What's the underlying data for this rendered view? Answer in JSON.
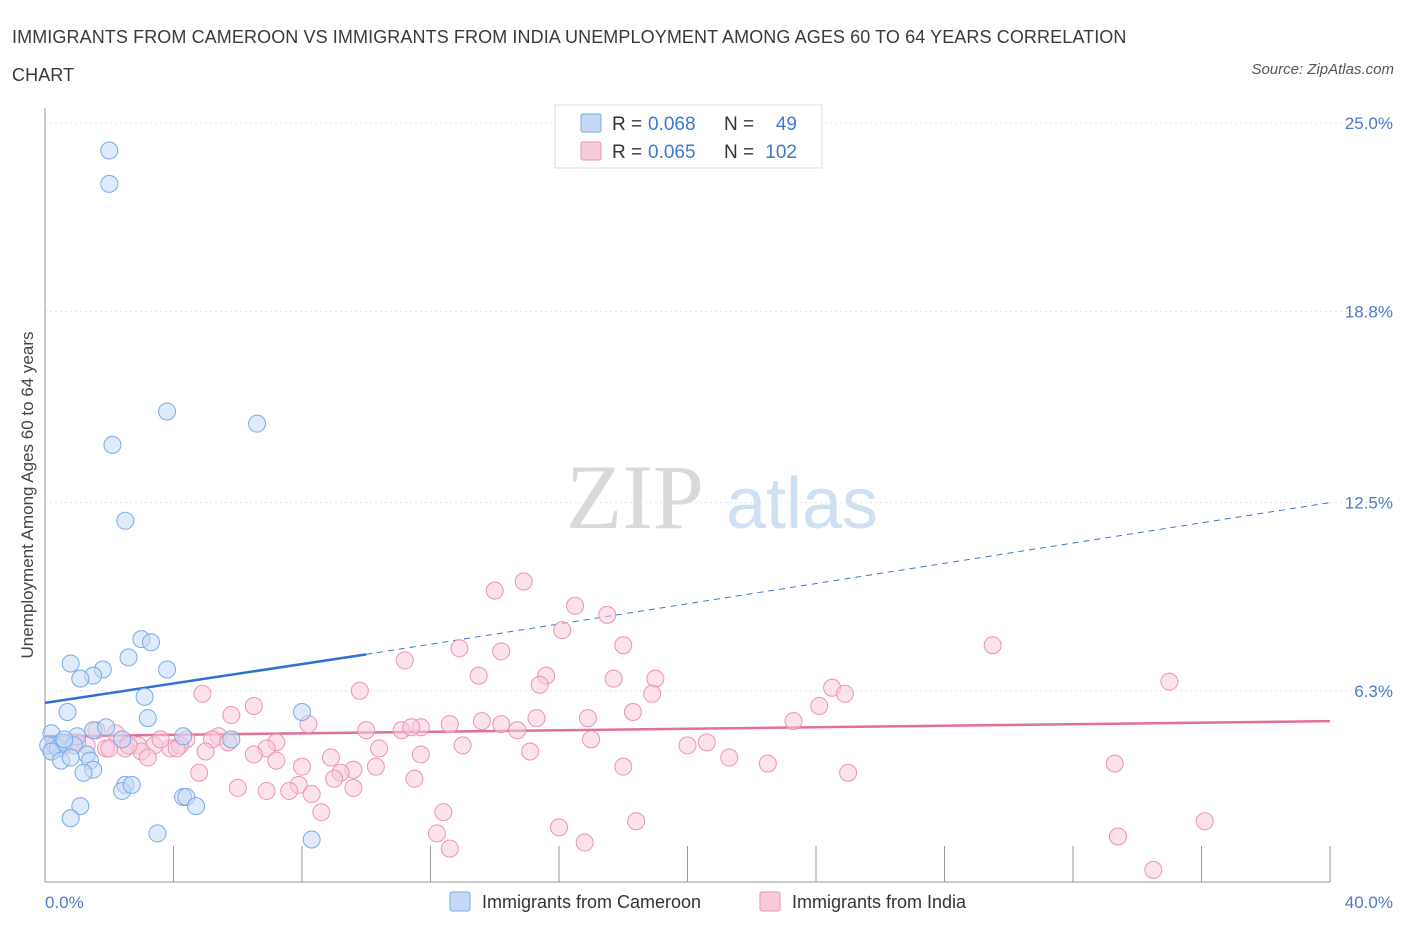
{
  "title": "IMMIGRANTS FROM CAMEROON VS IMMIGRANTS FROM INDIA UNEMPLOYMENT AMONG AGES 60 TO 64 YEARS CORRELATION CHART",
  "source": "Source: ZipAtlas.com",
  "watermark": {
    "zip": "ZIP",
    "atlas": "atlas"
  },
  "chart_data": {
    "type": "scatter",
    "title": "IMMIGRANTS FROM CAMEROON VS IMMIGRANTS FROM INDIA UNEMPLOYMENT AMONG AGES 60 TO 64 YEARS CORRELATION CHART",
    "xlabel": "",
    "ylabel": "Unemployment Among Ages 60 to 64 years",
    "xlim": [
      0,
      40
    ],
    "ylim": [
      0,
      25.5
    ],
    "x_tick_labels": {
      "min": "0.0%",
      "max": "40.0%"
    },
    "y_ticks": [
      {
        "value": 6.3,
        "label": "6.3%"
      },
      {
        "value": 12.5,
        "label": "12.5%"
      },
      {
        "value": 18.8,
        "label": "18.8%"
      },
      {
        "value": 25.0,
        "label": "25.0%"
      }
    ],
    "grid": true,
    "legend_position": "top-center",
    "series": [
      {
        "name": "Immigrants from Cameroon",
        "color": "#7aaae8",
        "fill": "#c5d9f5",
        "R": "0.068",
        "N": "49",
        "trend": {
          "x0": 0,
          "y0": 5.9,
          "x1": 10,
          "y1": 7.5,
          "dashed_to_x": 40,
          "dashed_to_y": 12.5
        },
        "points": [
          [
            2.0,
            24.1
          ],
          [
            2.0,
            23.0
          ],
          [
            3.8,
            15.5
          ],
          [
            6.6,
            15.1
          ],
          [
            2.1,
            14.4
          ],
          [
            2.5,
            11.9
          ],
          [
            3.0,
            8.0
          ],
          [
            3.3,
            7.9
          ],
          [
            2.6,
            7.4
          ],
          [
            0.8,
            7.2
          ],
          [
            3.8,
            7.0
          ],
          [
            1.8,
            7.0
          ],
          [
            1.5,
            6.8
          ],
          [
            1.1,
            6.7
          ],
          [
            3.1,
            6.1
          ],
          [
            0.7,
            5.6
          ],
          [
            8.0,
            5.6
          ],
          [
            3.2,
            5.4
          ],
          [
            1.5,
            5.0
          ],
          [
            1.9,
            5.1
          ],
          [
            4.3,
            4.8
          ],
          [
            5.8,
            4.7
          ],
          [
            1.0,
            4.8
          ],
          [
            0.2,
            4.9
          ],
          [
            0.5,
            4.6
          ],
          [
            0.3,
            4.5
          ],
          [
            0.1,
            4.5
          ],
          [
            0.4,
            4.4
          ],
          [
            0.6,
            4.6
          ],
          [
            0.9,
            4.5
          ],
          [
            2.4,
            4.7
          ],
          [
            0.2,
            4.3
          ],
          [
            1.3,
            4.2
          ],
          [
            1.4,
            4.0
          ],
          [
            0.5,
            4.0
          ],
          [
            0.8,
            4.1
          ],
          [
            1.5,
            3.7
          ],
          [
            1.2,
            3.6
          ],
          [
            2.5,
            3.2
          ],
          [
            2.4,
            3.0
          ],
          [
            2.7,
            3.2
          ],
          [
            1.1,
            2.5
          ],
          [
            4.3,
            2.8
          ],
          [
            4.4,
            2.8
          ],
          [
            4.7,
            2.5
          ],
          [
            0.8,
            2.1
          ],
          [
            3.5,
            1.6
          ],
          [
            8.3,
            1.4
          ],
          [
            0.6,
            4.7
          ]
        ]
      },
      {
        "name": "Immigrants from India",
        "color": "#ee93b4",
        "fill": "#f8cbdc",
        "R": "0.065",
        "N": "102",
        "trend": {
          "x0": 0,
          "y0": 4.8,
          "x1": 40,
          "y1": 5.3
        },
        "points": [
          [
            14.9,
            9.9
          ],
          [
            14.0,
            9.6
          ],
          [
            16.5,
            9.1
          ],
          [
            17.5,
            8.8
          ],
          [
            16.1,
            8.3
          ],
          [
            18.0,
            7.8
          ],
          [
            29.5,
            7.8
          ],
          [
            12.9,
            7.7
          ],
          [
            14.2,
            7.6
          ],
          [
            11.2,
            7.3
          ],
          [
            13.5,
            6.8
          ],
          [
            15.6,
            6.8
          ],
          [
            17.7,
            6.7
          ],
          [
            19.0,
            6.7
          ],
          [
            35.0,
            6.6
          ],
          [
            15.4,
            6.5
          ],
          [
            24.5,
            6.4
          ],
          [
            9.8,
            6.3
          ],
          [
            18.9,
            6.2
          ],
          [
            24.9,
            6.2
          ],
          [
            4.9,
            6.2
          ],
          [
            24.1,
            5.8
          ],
          [
            6.5,
            5.8
          ],
          [
            18.3,
            5.6
          ],
          [
            16.9,
            5.4
          ],
          [
            15.3,
            5.4
          ],
          [
            5.8,
            5.5
          ],
          [
            13.6,
            5.3
          ],
          [
            23.3,
            5.3
          ],
          [
            12.6,
            5.2
          ],
          [
            14.2,
            5.2
          ],
          [
            8.2,
            5.2
          ],
          [
            11.7,
            5.1
          ],
          [
            11.1,
            5.0
          ],
          [
            11.4,
            5.1
          ],
          [
            10.0,
            5.0
          ],
          [
            14.7,
            5.0
          ],
          [
            1.6,
            5.0
          ],
          [
            2.2,
            4.9
          ],
          [
            5.4,
            4.8
          ],
          [
            5.2,
            4.7
          ],
          [
            4.4,
            4.7
          ],
          [
            20.6,
            4.6
          ],
          [
            7.2,
            4.6
          ],
          [
            13.0,
            4.5
          ],
          [
            20.0,
            4.5
          ],
          [
            2.9,
            4.5
          ],
          [
            3.4,
            4.5
          ],
          [
            3.9,
            4.4
          ],
          [
            4.2,
            4.5
          ],
          [
            3.0,
            4.3
          ],
          [
            10.4,
            4.4
          ],
          [
            15.1,
            4.3
          ],
          [
            6.9,
            4.4
          ],
          [
            2.5,
            4.4
          ],
          [
            5.0,
            4.3
          ],
          [
            0.8,
            4.6
          ],
          [
            1.3,
            4.5
          ],
          [
            0.5,
            4.4
          ],
          [
            0.3,
            4.5
          ],
          [
            1.9,
            4.4
          ],
          [
            2.6,
            4.5
          ],
          [
            6.5,
            4.2
          ],
          [
            7.2,
            4.0
          ],
          [
            11.7,
            4.2
          ],
          [
            8.9,
            4.1
          ],
          [
            3.2,
            4.1
          ],
          [
            2.0,
            4.4
          ],
          [
            1.0,
            4.6
          ],
          [
            0.2,
            4.3
          ],
          [
            21.3,
            4.1
          ],
          [
            22.5,
            3.9
          ],
          [
            18.0,
            3.8
          ],
          [
            9.6,
            3.7
          ],
          [
            8.0,
            3.8
          ],
          [
            10.3,
            3.8
          ],
          [
            25.0,
            3.6
          ],
          [
            9.2,
            3.6
          ],
          [
            9.0,
            3.4
          ],
          [
            11.5,
            3.4
          ],
          [
            4.8,
            3.6
          ],
          [
            7.9,
            3.2
          ],
          [
            33.3,
            3.9
          ],
          [
            9.6,
            3.1
          ],
          [
            6.0,
            3.1
          ],
          [
            6.9,
            3.0
          ],
          [
            7.6,
            3.0
          ],
          [
            8.6,
            2.3
          ],
          [
            12.4,
            2.3
          ],
          [
            18.4,
            2.0
          ],
          [
            16.0,
            1.8
          ],
          [
            12.2,
            1.6
          ],
          [
            36.1,
            2.0
          ],
          [
            33.4,
            1.5
          ],
          [
            16.8,
            1.3
          ],
          [
            12.6,
            1.1
          ],
          [
            34.5,
            0.4
          ],
          [
            8.3,
            2.9
          ],
          [
            4.1,
            4.4
          ],
          [
            5.7,
            4.6
          ],
          [
            3.6,
            4.7
          ],
          [
            17.0,
            4.7
          ]
        ]
      }
    ]
  }
}
